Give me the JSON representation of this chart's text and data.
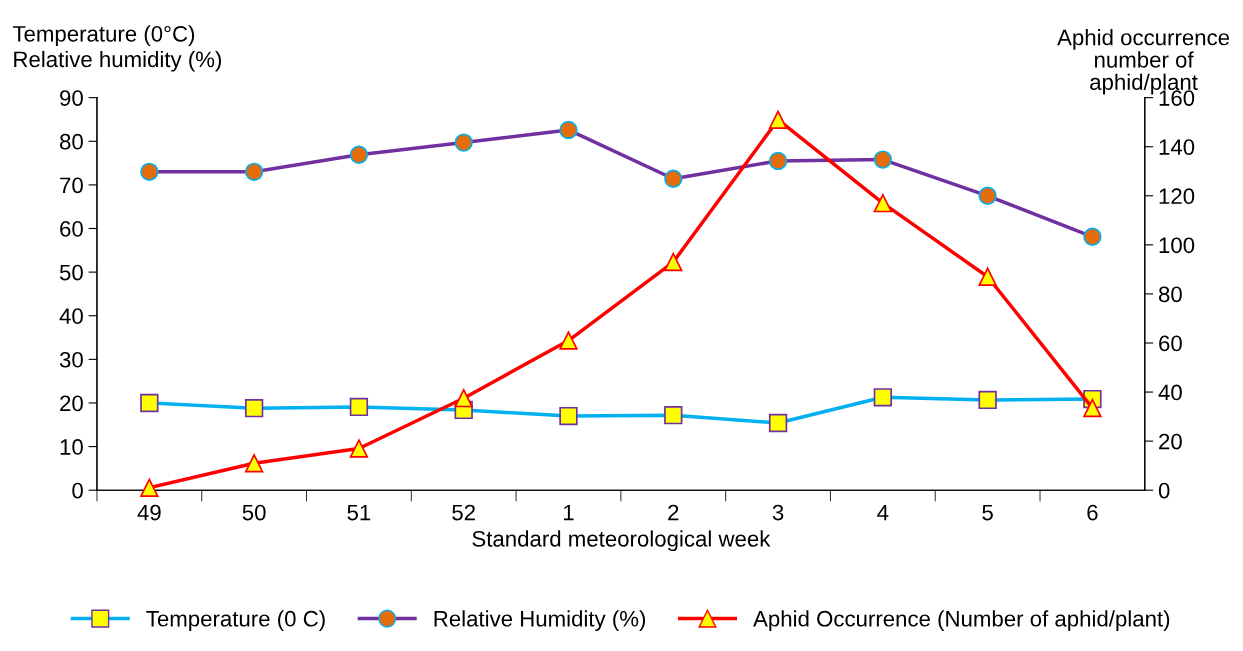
{
  "chart_data": {
    "type": "line",
    "xlabel": "Standard meteorological week",
    "ylabel": "Temperature (0°C)\nRelative humidity (%)",
    "y2label": "Aphid occurrence\nnumber of\naphid/plant",
    "categories": [
      "49",
      "50",
      "51",
      "52",
      "1",
      "2",
      "3",
      "4",
      "5",
      "6"
    ],
    "series": [
      {
        "name": "Temperature (0 C)",
        "color": "#00b0f0",
        "marker": "square",
        "values": [
          20.0,
          18.8,
          19.1,
          18.4,
          17.0,
          17.2,
          15.4,
          21.3,
          20.7,
          20.9
        ]
      },
      {
        "name": "Relative Humidity (%)",
        "color": "#7030a0",
        "marker": "circle",
        "values": [
          73.0,
          73.0,
          76.9,
          79.7,
          82.6,
          71.4,
          75.5,
          75.8,
          67.5,
          58.1
        ]
      },
      {
        "name": "Aphid Occurrence (Number of aphid/plant)",
        "color": "#ff0000",
        "marker": "triangle",
        "axis": "y2",
        "values": [
          1,
          11,
          17,
          37.5,
          61,
          93,
          151,
          117,
          87,
          33.5
        ]
      }
    ],
    "ylim": [
      0,
      90
    ],
    "yticks": [
      0,
      10,
      20,
      30,
      40,
      50,
      60,
      70,
      80,
      90
    ],
    "y2lim": [
      0,
      160
    ],
    "y2ticks": [
      0,
      20,
      40,
      60,
      80,
      100,
      120,
      140,
      160
    ],
    "grid": false,
    "legend": "bottom"
  }
}
